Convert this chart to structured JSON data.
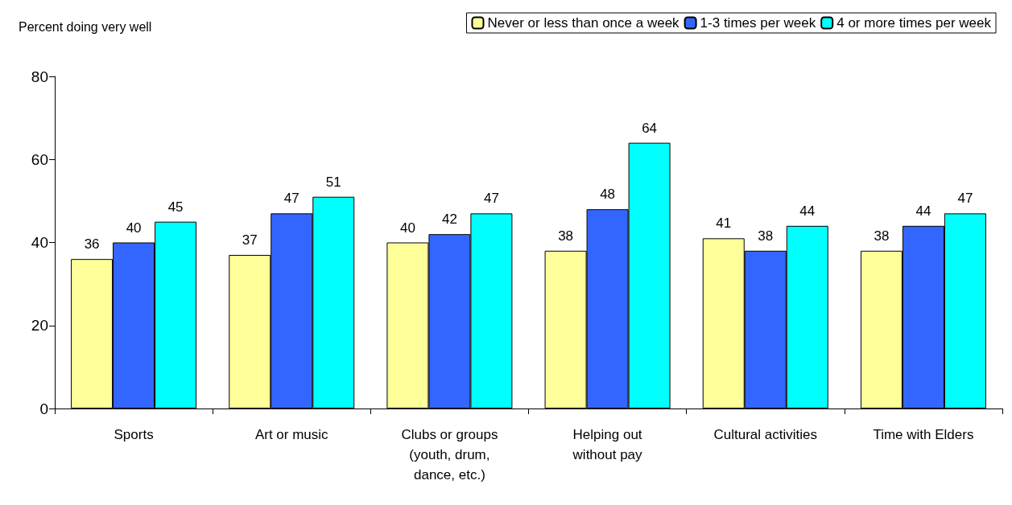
{
  "chart_data": {
    "type": "bar",
    "ylabel": "Percent doing very well",
    "categories": [
      "Sports",
      "Art or music",
      "Clubs or groups\n(youth, drum,\ndance, etc.)",
      "Helping out\nwithout pay",
      "Cultural activities",
      "Time with Elders"
    ],
    "series": [
      {
        "name": "Never or less than once a week",
        "color": "#ffff99",
        "values": [
          36,
          37,
          40,
          38,
          41,
          38
        ]
      },
      {
        "name": "1-3 times per week",
        "color": "#3366ff",
        "values": [
          40,
          47,
          42,
          48,
          38,
          44
        ]
      },
      {
        "name": "4 or more times per week",
        "color": "#00ffff",
        "values": [
          45,
          51,
          47,
          64,
          44,
          47
        ]
      }
    ],
    "ylim": [
      0,
      80
    ],
    "yticks": [
      0,
      20,
      40,
      60,
      80
    ],
    "data_labels": true,
    "legend": "top right",
    "grid": false
  }
}
